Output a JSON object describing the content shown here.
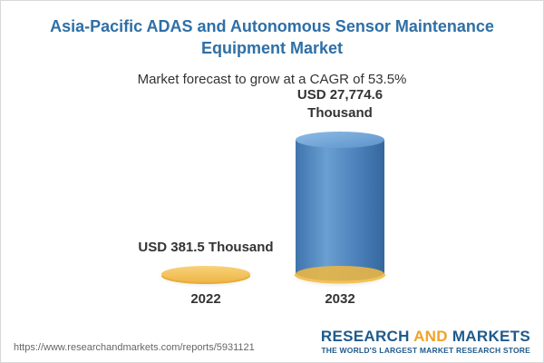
{
  "header": {
    "title": "Asia-Pacific ADAS and Autonomous Sensor Maintenance Equipment Market",
    "subtitle": "Market forecast to grow at a CAGR of 53.5%"
  },
  "chart_data": {
    "type": "bar",
    "title": "Asia-Pacific ADAS and Autonomous Sensor Maintenance Equipment Market",
    "subtitle": "Market forecast to grow at a CAGR of 53.5%",
    "categories": [
      "2022",
      "2032"
    ],
    "values": [
      381.5,
      27774.6
    ],
    "unit": "USD Thousand",
    "data_labels": [
      "USD 381.5 Thousand",
      "USD 27,774.6 Thousand"
    ],
    "cagr": "53.5%",
    "xlabel": "",
    "ylabel": "",
    "ylim": [
      0,
      27774.6
    ],
    "colors": [
      "#f5c45e",
      "#4f86bf"
    ]
  },
  "footer": {
    "url": "https://www.researchandmarkets.com/reports/5931121",
    "brand_word1": "RESEARCH ",
    "brand_word2": "AND",
    "brand_word3": " MARKETS",
    "tagline": "THE WORLD'S LARGEST MARKET RESEARCH STORE"
  }
}
